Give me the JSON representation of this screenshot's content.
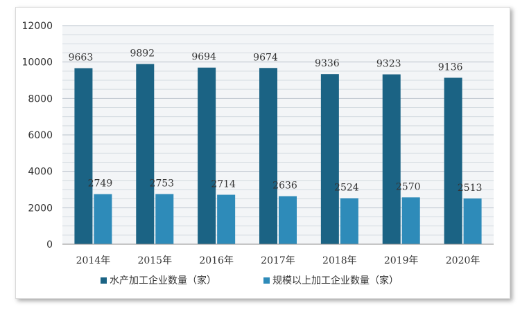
{
  "chart_data": {
    "type": "bar",
    "categories": [
      "2014年",
      "2015年",
      "2016年",
      "2017年",
      "2018年",
      "2019年",
      "2020年"
    ],
    "series": [
      {
        "name": "水产加工企业数量（家）",
        "values": [
          9663,
          9892,
          9694,
          9674,
          9336,
          9323,
          9136
        ],
        "color": "#1b6384"
      },
      {
        "name": "规模以上加工企业数量（家）",
        "values": [
          2749,
          2753,
          2714,
          2636,
          2524,
          2570,
          2513
        ],
        "color": "#2e8bb9"
      }
    ],
    "ylim": [
      0,
      12000
    ],
    "yticks": [
      0,
      2000,
      4000,
      6000,
      8000,
      10000,
      12000
    ],
    "grid": true,
    "legend_position": "bottom",
    "data_labels": true
  }
}
